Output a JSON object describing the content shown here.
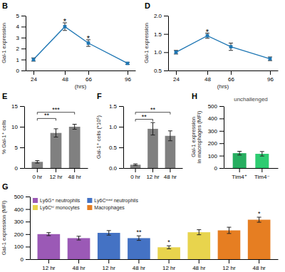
{
  "chart_data": [
    {
      "type": "line",
      "x": [
        24,
        48,
        66,
        96
      ],
      "values": [
        1.0,
        4.0,
        2.5,
        0.65
      ],
      "yerr": [
        0.15,
        0.35,
        0.3,
        0.1
      ],
      "xlabel": "(hrs)",
      "ylabel": "Gal-1 expression",
      "xlim": [
        18,
        102
      ],
      "xticks": [
        24,
        48,
        66,
        96
      ],
      "ylim": [
        0,
        5
      ],
      "yticks": [
        0,
        1,
        2,
        3,
        4,
        5
      ],
      "marker": "square",
      "annotations": [
        {
          "text": "B"
        },
        {
          "x": 48,
          "y": 4.45,
          "text": "*"
        },
        {
          "x": 66,
          "y": 2.92,
          "text": "*"
        }
      ]
    },
    {
      "type": "line",
      "x": [
        24,
        48,
        66,
        96
      ],
      "values": [
        1.0,
        1.45,
        1.15,
        0.82
      ],
      "yerr": [
        0.05,
        0.07,
        0.1,
        0.05
      ],
      "xlabel": "(hrs)",
      "ylabel": "Gal-1 expression",
      "xlim": [
        18,
        102
      ],
      "xticks": [
        24,
        48,
        66,
        96
      ],
      "ylim": [
        0.5,
        2.0
      ],
      "yticks": [
        0.5,
        {
          "value": 1.0,
          "label": "1.0"
        },
        1.5,
        {
          "value": 2.0,
          "label": "2.0"
        }
      ],
      "marker": "square",
      "annotations": [
        {
          "text": "D"
        },
        {
          "x": 48,
          "y": 1.56,
          "text": "*"
        }
      ]
    },
    {
      "type": "bar",
      "categories": [
        "0 hr",
        "12 hr",
        "48 hr"
      ],
      "values": [
        1.5,
        8.5,
        10.0
      ],
      "yerr": [
        0.3,
        1.0,
        0.6
      ],
      "color": "#808080",
      "ylabel": "% Gal-1⁺ cells",
      "ylim": [
        0,
        15
      ],
      "yticks": [
        0,
        5,
        10,
        15
      ],
      "annotations": [
        {
          "text": "E"
        },
        {
          "x1": 0,
          "x2": 1,
          "y": 12.0,
          "text": "**"
        },
        {
          "x1": 0,
          "x2": 2,
          "y": 13.5,
          "text": "***"
        }
      ]
    },
    {
      "type": "bar",
      "categories": [
        "0 hr",
        "12 hr",
        "48 hr"
      ],
      "values": [
        0.08,
        0.95,
        0.78
      ],
      "yerr": [
        0.02,
        0.15,
        0.12
      ],
      "color": "#808080",
      "ylabel": "Gal-1⁺ cells (*10⁶)",
      "ylim": [
        0,
        1.5
      ],
      "yticks": [
        {
          "value": 0,
          "label": "0.0"
        },
        0.5,
        {
          "value": 1.0,
          "label": "1.0"
        },
        1.5
      ],
      "annotations": [
        {
          "text": "F"
        },
        {
          "x1": 0,
          "x2": 1,
          "y": 1.18,
          "text": "**"
        },
        {
          "x1": 0,
          "x2": 2,
          "y": 1.35,
          "text": "**"
        }
      ]
    },
    {
      "type": "bar",
      "categories": [
        "12 hr",
        "48 hr",
        "12 hr",
        "48 hr",
        "12 hr",
        "48 hr",
        "12 hr",
        "48 hr"
      ],
      "series": [
        {
          "name": "Ly6G⁺ neutrophils",
          "color": "#9b59b6",
          "values": [
            200,
            168,
            null,
            null,
            null,
            null,
            null,
            null
          ],
          "yerr": [
            12,
            15,
            null,
            null,
            null,
            null,
            null,
            null
          ]
        },
        {
          "name": "Ly6Cʰⁱ monocytes",
          "color": "#e8d44d",
          "values": [
            null,
            null,
            null,
            null,
            95,
            215,
            null,
            null
          ],
          "yerr": [
            null,
            null,
            null,
            null,
            12,
            20,
            null,
            null
          ]
        },
        {
          "name": "Ly6Cᵐᵉᵈ neutrophils",
          "color": "#4472c4",
          "values": [
            null,
            null,
            210,
            168,
            null,
            null,
            null,
            null
          ],
          "yerr": [
            null,
            null,
            18,
            18,
            null,
            null,
            null,
            null
          ]
        },
        {
          "name": "Macrophages",
          "color": "#e67e22",
          "values": [
            null,
            null,
            null,
            null,
            null,
            null,
            230,
            315
          ],
          "yerr": [
            null,
            null,
            null,
            null,
            null,
            null,
            25,
            20
          ]
        }
      ],
      "ylabel": "Gal-1 expression (MFI)",
      "ylim": [
        0,
        500
      ],
      "yticks": [
        0,
        100,
        200,
        300,
        400,
        500
      ],
      "legend": "upper left",
      "annotations": [
        {
          "text": "G"
        },
        {
          "bar": 3,
          "text": "**"
        },
        {
          "bar": 4,
          "text": "*"
        },
        {
          "bar": 7,
          "text": "*"
        }
      ]
    },
    {
      "type": "bar",
      "title": "unchallenged",
      "categories": [
        "Tim4⁺",
        "Tim4⁻"
      ],
      "values": [
        120,
        115
      ],
      "yerr": [
        15,
        18
      ],
      "colors": [
        "#27ae60",
        "#2ecc71"
      ],
      "ylabel": "Gal-1 expression\nin macrophages (MFI)",
      "ylim": [
        0,
        500
      ],
      "yticks": [
        0,
        100,
        200,
        300,
        400,
        500
      ],
      "annotations": [
        {
          "text": "H"
        }
      ]
    }
  ]
}
